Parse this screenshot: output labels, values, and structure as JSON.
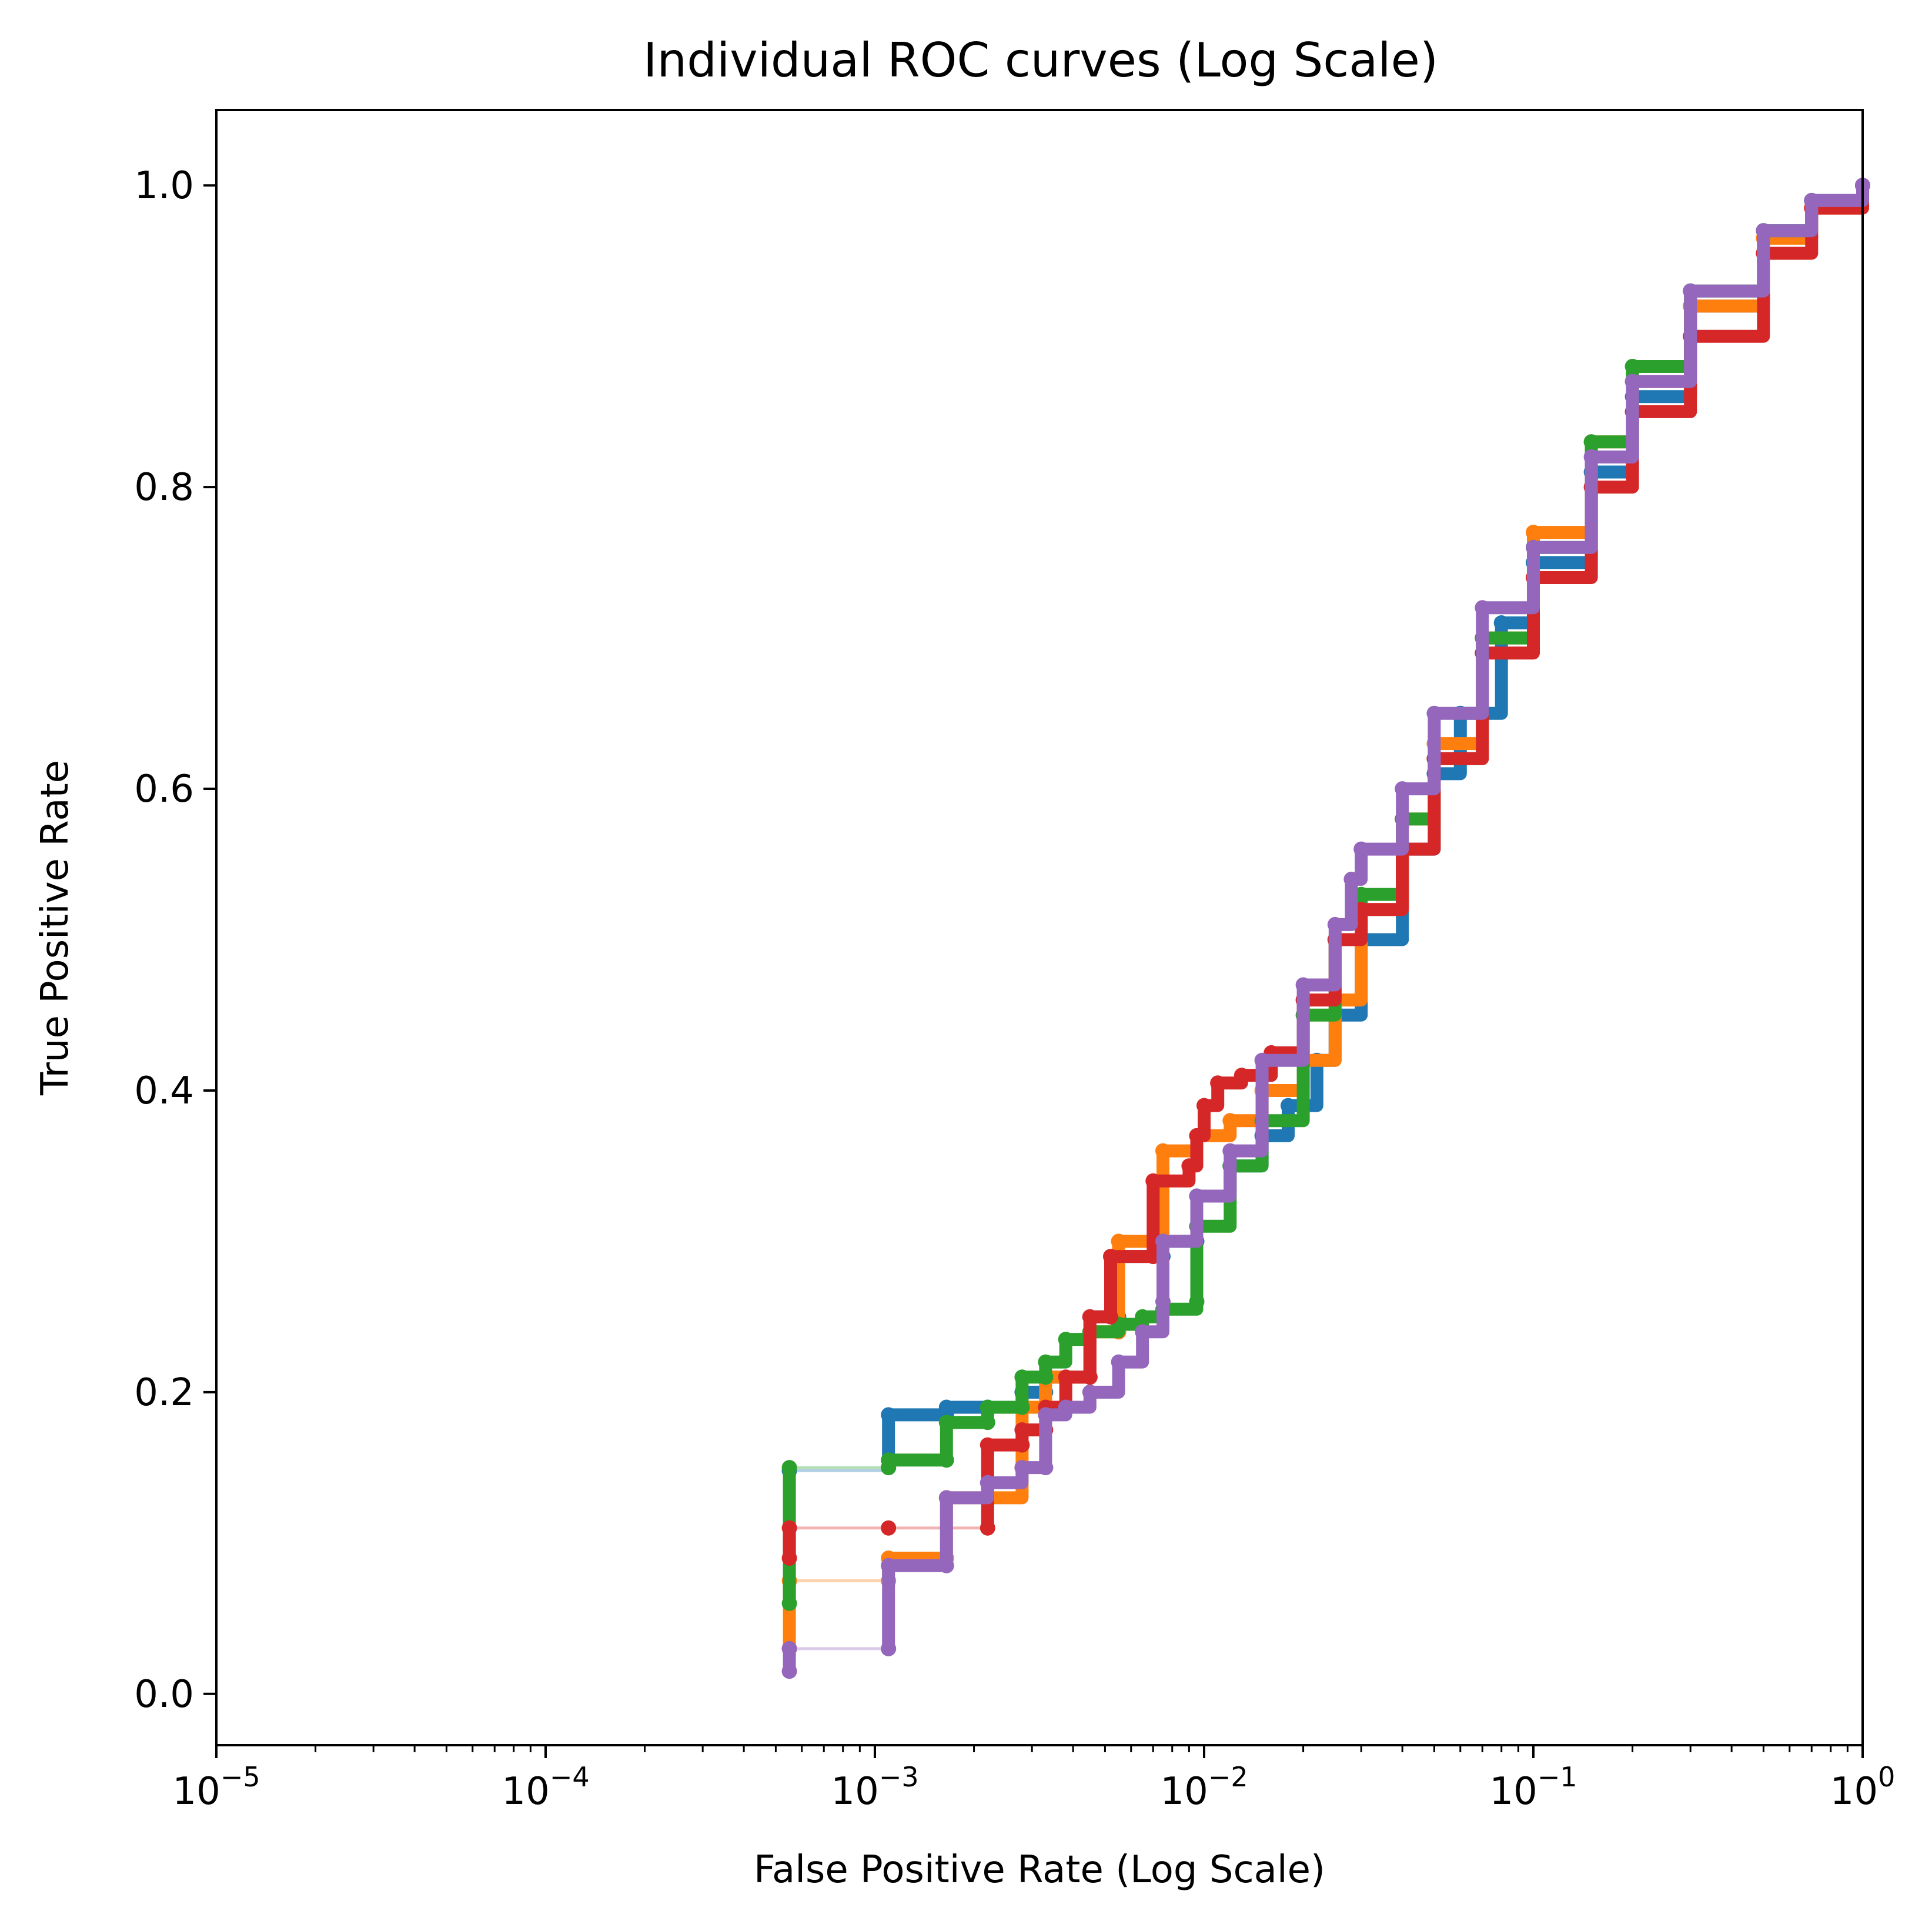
{
  "chart_data": {
    "type": "line",
    "title": "Individual ROC curves (Log Scale)",
    "xlabel": "False Positive Rate (Log Scale)",
    "ylabel": "True Positive Rate",
    "x_scale": "log",
    "xlim": [
      1e-05,
      1
    ],
    "ylim": [
      -0.034,
      1.05
    ],
    "grid": false,
    "legend": "none",
    "x_ticks": [
      {
        "value": 1e-05,
        "base": "10",
        "exp": "−5"
      },
      {
        "value": 0.0001,
        "base": "10",
        "exp": "−4"
      },
      {
        "value": 0.001,
        "base": "10",
        "exp": "−3"
      },
      {
        "value": 0.01,
        "base": "10",
        "exp": "−2"
      },
      {
        "value": 0.1,
        "base": "10",
        "exp": "−1"
      },
      {
        "value": 1,
        "base": "10",
        "exp": "0"
      }
    ],
    "y_ticks": [
      {
        "value": 0.0,
        "label": "0.0"
      },
      {
        "value": 0.2,
        "label": "0.2"
      },
      {
        "value": 0.4,
        "label": "0.4"
      },
      {
        "value": 0.6,
        "label": "0.6"
      },
      {
        "value": 0.8,
        "label": "0.8"
      },
      {
        "value": 1.0,
        "label": "1.0"
      }
    ],
    "series": [
      {
        "color": "#1f77b4",
        "x": [
          0.00055,
          0.00055,
          0.0011,
          0.0011,
          0.00165,
          0.00165,
          0.0022,
          0.0028,
          0.0033,
          0.0033,
          0.0045,
          0.0045,
          0.0055,
          0.0055,
          0.0075,
          0.0075,
          0.0095,
          0.0095,
          0.012,
          0.015,
          0.018,
          0.022,
          0.025,
          0.03,
          0.04,
          0.05,
          0.06,
          0.08,
          0.1,
          0.15,
          0.2,
          0.3,
          0.5,
          0.7,
          1.0
        ],
        "y": [
          0.148,
          0.148,
          0.15,
          0.185,
          0.185,
          0.19,
          0.19,
          0.2,
          0.2,
          0.21,
          0.21,
          0.25,
          0.25,
          0.29,
          0.29,
          0.3,
          0.3,
          0.33,
          0.35,
          0.37,
          0.39,
          0.42,
          0.45,
          0.5,
          0.56,
          0.61,
          0.65,
          0.71,
          0.75,
          0.81,
          0.86,
          0.92,
          0.97,
          0.99,
          1.0
        ]
      },
      {
        "color": "#ff7f0e",
        "x": [
          0.00055,
          0.00055,
          0.0011,
          0.0011,
          0.00165,
          0.00165,
          0.0022,
          0.0028,
          0.0028,
          0.0033,
          0.0033,
          0.0045,
          0.0045,
          0.0055,
          0.0055,
          0.0075,
          0.0075,
          0.0095,
          0.012,
          0.015,
          0.02,
          0.025,
          0.03,
          0.04,
          0.05,
          0.07,
          0.1,
          0.15,
          0.2,
          0.3,
          0.5,
          0.7,
          1.0
        ],
        "y": [
          0.03,
          0.075,
          0.075,
          0.09,
          0.09,
          0.13,
          0.13,
          0.15,
          0.19,
          0.19,
          0.21,
          0.21,
          0.24,
          0.24,
          0.3,
          0.3,
          0.36,
          0.37,
          0.38,
          0.4,
          0.42,
          0.46,
          0.52,
          0.58,
          0.63,
          0.7,
          0.77,
          0.83,
          0.87,
          0.92,
          0.965,
          0.985,
          1.0
        ]
      },
      {
        "color": "#2ca02c",
        "x": [
          0.00055,
          0.00055,
          0.0011,
          0.0011,
          0.00165,
          0.00165,
          0.0022,
          0.0022,
          0.0028,
          0.0028,
          0.0033,
          0.0033,
          0.0038,
          0.0045,
          0.0055,
          0.0065,
          0.0075,
          0.0095,
          0.0095,
          0.012,
          0.015,
          0.02,
          0.025,
          0.03,
          0.04,
          0.05,
          0.07,
          0.1,
          0.15,
          0.2,
          0.3,
          0.5,
          0.7,
          1.0
        ],
        "y": [
          0.06,
          0.15,
          0.15,
          0.155,
          0.155,
          0.18,
          0.18,
          0.19,
          0.19,
          0.21,
          0.21,
          0.22,
          0.235,
          0.24,
          0.245,
          0.25,
          0.255,
          0.26,
          0.31,
          0.35,
          0.38,
          0.45,
          0.5,
          0.53,
          0.58,
          0.62,
          0.7,
          0.76,
          0.83,
          0.88,
          0.93,
          0.97,
          0.99,
          1.0
        ]
      },
      {
        "color": "#d62728",
        "x": [
          0.00055,
          0.00055,
          0.0011,
          0.0022,
          0.0022,
          0.0028,
          0.0028,
          0.0033,
          0.0033,
          0.0038,
          0.0038,
          0.0045,
          0.0045,
          0.0052,
          0.0052,
          0.007,
          0.007,
          0.009,
          0.0095,
          0.01,
          0.011,
          0.013,
          0.016,
          0.02,
          0.025,
          0.03,
          0.04,
          0.05,
          0.07,
          0.1,
          0.15,
          0.2,
          0.3,
          0.5,
          0.7,
          1.0
        ],
        "y": [
          0.09,
          0.11,
          0.11,
          0.11,
          0.165,
          0.165,
          0.175,
          0.175,
          0.19,
          0.19,
          0.21,
          0.21,
          0.25,
          0.25,
          0.29,
          0.29,
          0.34,
          0.35,
          0.37,
          0.39,
          0.405,
          0.41,
          0.425,
          0.46,
          0.5,
          0.52,
          0.56,
          0.62,
          0.69,
          0.74,
          0.8,
          0.85,
          0.9,
          0.955,
          0.985,
          1.0
        ]
      },
      {
        "color": "#9467bd",
        "x": [
          0.00055,
          0.00055,
          0.0011,
          0.0011,
          0.00165,
          0.00165,
          0.0022,
          0.0028,
          0.0033,
          0.0033,
          0.0038,
          0.0045,
          0.0055,
          0.0065,
          0.0075,
          0.0075,
          0.0095,
          0.012,
          0.015,
          0.02,
          0.025,
          0.028,
          0.03,
          0.04,
          0.05,
          0.07,
          0.1,
          0.15,
          0.2,
          0.3,
          0.5,
          0.7,
          1.0
        ],
        "y": [
          0.015,
          0.03,
          0.03,
          0.085,
          0.085,
          0.13,
          0.14,
          0.15,
          0.15,
          0.185,
          0.19,
          0.2,
          0.22,
          0.24,
          0.26,
          0.3,
          0.33,
          0.36,
          0.42,
          0.47,
          0.51,
          0.54,
          0.56,
          0.6,
          0.65,
          0.72,
          0.76,
          0.82,
          0.87,
          0.93,
          0.97,
          0.99,
          1.0
        ]
      }
    ]
  }
}
